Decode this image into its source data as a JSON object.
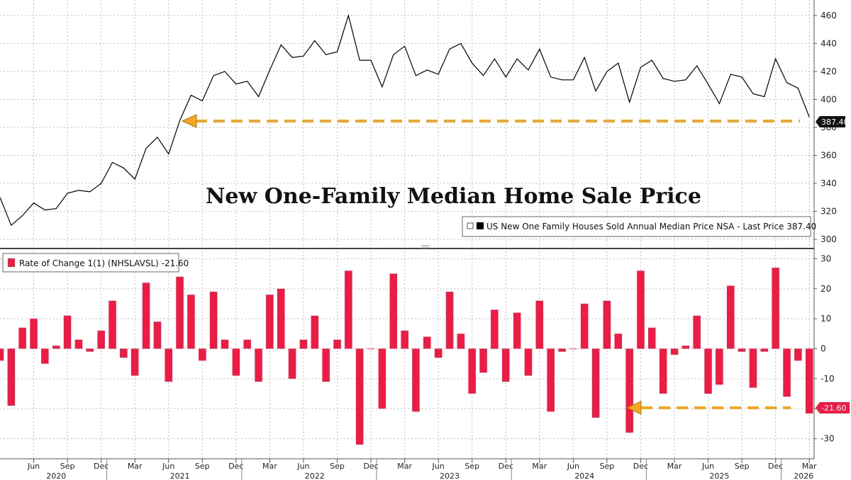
{
  "chart_data": [
    {
      "type": "line",
      "title": "New One-Family Median Home Sale Price",
      "legend": "US New One Family Houses Sold Annual Median Price NSA - Last Price 387.40",
      "last_value_label": "387.40",
      "series": [
        {
          "name": "US New One Family Houses Sold Annual Median Price NSA",
          "values": [
            330,
            310,
            317,
            326,
            321,
            322,
            333,
            335,
            334,
            340,
            355,
            351,
            343,
            365,
            373,
            361,
            385,
            403,
            399,
            417,
            420,
            411,
            413,
            402,
            421,
            439,
            430,
            431,
            442,
            432,
            434,
            460,
            428,
            428,
            409,
            432,
            438,
            417,
            421,
            418,
            436,
            440,
            426,
            417,
            429,
            416,
            429,
            421,
            436,
            416,
            414,
            414,
            430,
            406,
            420,
            426,
            398,
            423,
            428,
            415,
            413,
            414,
            424,
            411,
            397,
            418,
            416,
            404,
            402,
            429,
            412,
            408,
            387.4
          ]
        }
      ],
      "ylim": [
        296,
        466
      ],
      "yticks": [
        300,
        320,
        340,
        360,
        380,
        400,
        420,
        440,
        460
      ],
      "grid": true
    },
    {
      "type": "bar",
      "legend": "Rate of Change 1(1) (NHSLAVSL) -21.60",
      "last_value_label": "-21.60",
      "series": [
        {
          "name": "Rate of Change 1(1) (NHSLAVSL)",
          "values": [
            -4,
            -19,
            7,
            10,
            -5,
            1,
            11,
            3,
            -1,
            6,
            16,
            -3,
            -9,
            22,
            9,
            -11,
            24,
            18,
            -4,
            19,
            3,
            -9,
            3,
            -11,
            18,
            20,
            -10,
            3,
            11,
            -11,
            3,
            26,
            -32,
            0,
            -20,
            25,
            6,
            -21,
            4,
            -3,
            19,
            5,
            -15,
            -8,
            13,
            -11,
            12,
            -9,
            16,
            -21,
            -1,
            0,
            15,
            -23,
            16,
            5,
            -28,
            26,
            7,
            -15,
            -2,
            1,
            11,
            -15,
            -12,
            21,
            -1,
            -13,
            -1,
            27,
            -16,
            -4,
            -21.6
          ]
        }
      ],
      "ylim": [
        -36,
        32
      ],
      "yticks": [
        -30,
        -20,
        -10,
        0,
        10,
        20,
        30
      ],
      "grid": true
    }
  ],
  "x_axis": {
    "start": "2020-03",
    "months": 73,
    "month_labels": [
      "Jun",
      "Sep",
      "Dec",
      "Mar",
      "Jun",
      "Sep",
      "Dec",
      "Mar",
      "Jun",
      "Sep",
      "Dec",
      "Mar",
      "Jun",
      "Sep",
      "Dec",
      "Mar",
      "Jun",
      "Sep",
      "Dec",
      "Mar",
      "Jun",
      "Sep",
      "Dec",
      "Mar"
    ],
    "year_labels": [
      "2020",
      "2021",
      "2022",
      "2023",
      "2024",
      "2025",
      "2026"
    ]
  },
  "colors": {
    "line": "#000000",
    "bar": "#ee1b45",
    "arrow": "#f5a623",
    "grid": "#bdbdbd",
    "last_label_bg": "#111111",
    "last_label_bar_bg": "#ee1b45"
  }
}
